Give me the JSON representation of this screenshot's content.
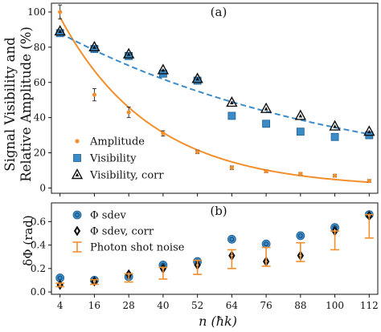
{
  "chart_data": [
    {
      "panel_label": "(a)",
      "type": "scatter",
      "ylabel_lines": [
        "Signal Visibility and",
        "Relative Amplitude (%)"
      ],
      "xlim": [
        1,
        115
      ],
      "ylim": [
        -3,
        105
      ],
      "x_ticks": [
        4,
        16,
        28,
        40,
        52,
        64,
        76,
        88,
        100,
        112
      ],
      "y_ticks": [
        0,
        20,
        40,
        60,
        80,
        100
      ],
      "grid": false,
      "legend_position": "lower-left",
      "x": [
        4,
        16,
        28,
        40,
        52,
        64,
        76,
        88,
        100,
        112
      ],
      "series": [
        {
          "name": "Amplitude",
          "marker": "circle-small",
          "color": "#f28e2b",
          "values": [
            100,
            53,
            43,
            31,
            20.5,
            11.5,
            9.5,
            8,
            7,
            4
          ],
          "errors": [
            4,
            3.5,
            3,
            1.5,
            1,
            1,
            0.8,
            0.8,
            0.8,
            0.8
          ]
        },
        {
          "name": "Visibility",
          "marker": "square",
          "color": "#3b8bc9",
          "values": [
            88,
            79,
            75,
            65,
            61,
            41,
            36.5,
            32,
            29,
            30
          ],
          "errors": [
            1.2,
            1.2,
            1.2,
            1.2,
            1.2,
            1.2,
            1.2,
            1.2,
            1.2,
            1.2
          ]
        },
        {
          "name": "Visibility, corr",
          "marker": "triangle",
          "color": "#111111",
          "values": [
            89,
            80,
            76,
            67,
            62,
            48.5,
            45,
            41,
            35,
            32
          ],
          "errors": [
            1,
            1,
            1,
            1,
            1,
            1,
            1,
            1,
            1,
            1
          ]
        }
      ],
      "fits": [
        {
          "kind": "exp",
          "a": 110,
          "b": 0.0313,
          "color": "#f28e2b",
          "style": "solid"
        },
        {
          "kind": "exp",
          "a": 91.5,
          "b": 0.00978,
          "color": "#3b8bc9",
          "style": "dashed"
        }
      ]
    },
    {
      "panel_label": "(b)",
      "type": "scatter",
      "ylabel": "δΦ (rad)",
      "xlabel": "n (ħk)",
      "xlim": [
        1,
        115
      ],
      "ylim": [
        -0.02,
        0.76
      ],
      "x_ticks": [
        4,
        16,
        28,
        40,
        52,
        64,
        76,
        88,
        100,
        112
      ],
      "y_ticks": [
        0.0,
        0.2,
        0.4,
        0.6
      ],
      "grid": false,
      "legend_position": "upper-left",
      "x": [
        4,
        16,
        28,
        40,
        52,
        64,
        76,
        88,
        100,
        112
      ],
      "series": [
        {
          "name": "Φ sdev",
          "marker": "circle",
          "color": "#3b8bc9",
          "values": [
            0.12,
            0.1,
            0.13,
            0.23,
            0.26,
            0.45,
            0.41,
            0.48,
            0.55,
            0.66
          ]
        },
        {
          "name": "Φ sdev, corr",
          "marker": "diamond",
          "color": "#111111",
          "values": [
            0.06,
            0.09,
            0.15,
            0.2,
            0.23,
            0.31,
            0.26,
            0.31,
            0.52,
            0.65
          ]
        },
        {
          "name": "Photon shot noise",
          "marker": "errorbar",
          "color": "#f28e2b",
          "values": [
            0.06,
            0.085,
            0.12,
            0.16,
            0.21,
            0.28,
            0.3,
            0.34,
            0.44,
            0.56
          ],
          "errors": [
            0.015,
            0.02,
            0.035,
            0.05,
            0.06,
            0.08,
            0.08,
            0.08,
            0.08,
            0.1
          ]
        }
      ]
    }
  ]
}
